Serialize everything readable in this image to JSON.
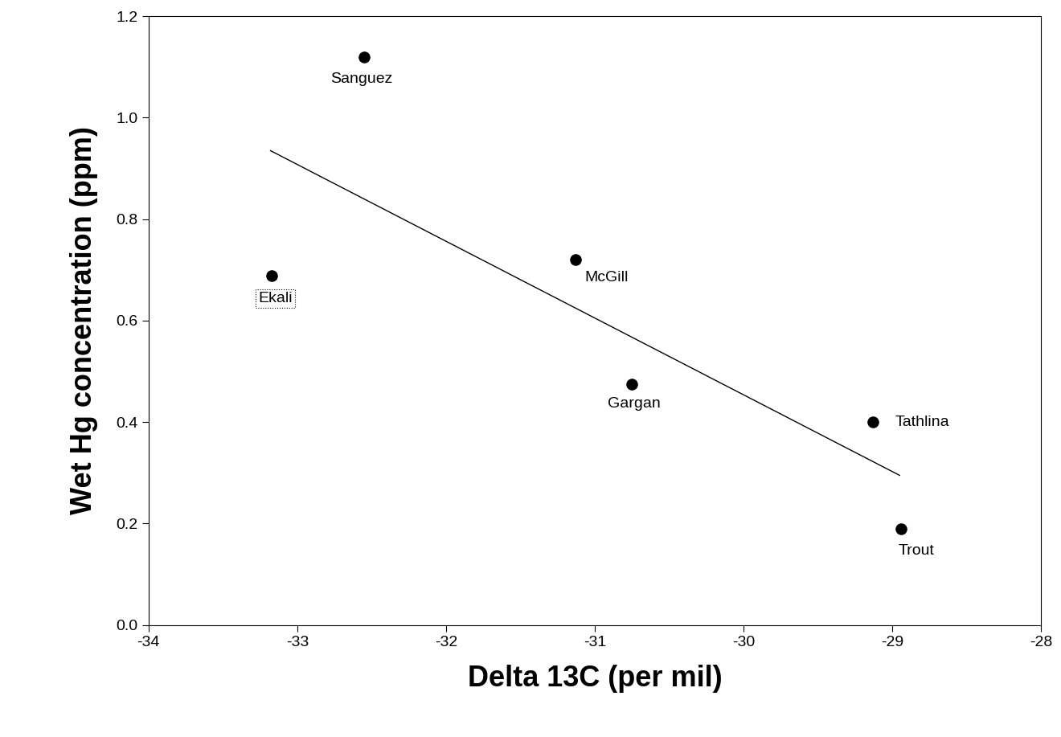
{
  "chart_data": {
    "type": "scatter",
    "x_label": "Delta 13C (per mil)",
    "y_label": "Wet Hg concentration (ppm)",
    "series": [
      {
        "type": "scatter",
        "color": "#000000",
        "marker": "circle",
        "point_labels": [
          "Sanguez",
          "Ekali",
          "McGill",
          "Gargan",
          "Tathlina",
          "Trout"
        ],
        "x": [
          -32.55,
          -33.17,
          -31.13,
          -30.75,
          -29.13,
          -28.94
        ],
        "values": [
          1.12,
          0.688,
          0.72,
          0.475,
          0.4,
          0.19
        ]
      },
      {
        "type": "line",
        "color": "#000000",
        "line_style": "solid",
        "x": [
          -33.18,
          -28.95
        ],
        "values": [
          0.935,
          0.295
        ]
      }
    ],
    "xlim": [
      -34,
      -28
    ],
    "xticks": [
      -34,
      -33,
      -32,
      -31,
      -30,
      -29,
      -28
    ],
    "ylim": [
      0,
      1.2
    ],
    "yticks": [
      {
        "value": 0,
        "label": "0.0"
      },
      {
        "value": 0.2,
        "label": "0.2"
      },
      {
        "value": 0.4,
        "label": "0.4"
      },
      {
        "value": 0.6,
        "label": "0.6"
      },
      {
        "value": 0.8,
        "label": "0.8"
      },
      {
        "value": 1.0,
        "label": "1.0"
      },
      {
        "value": 1.2,
        "label": "1.2"
      }
    ],
    "grid": false
  }
}
